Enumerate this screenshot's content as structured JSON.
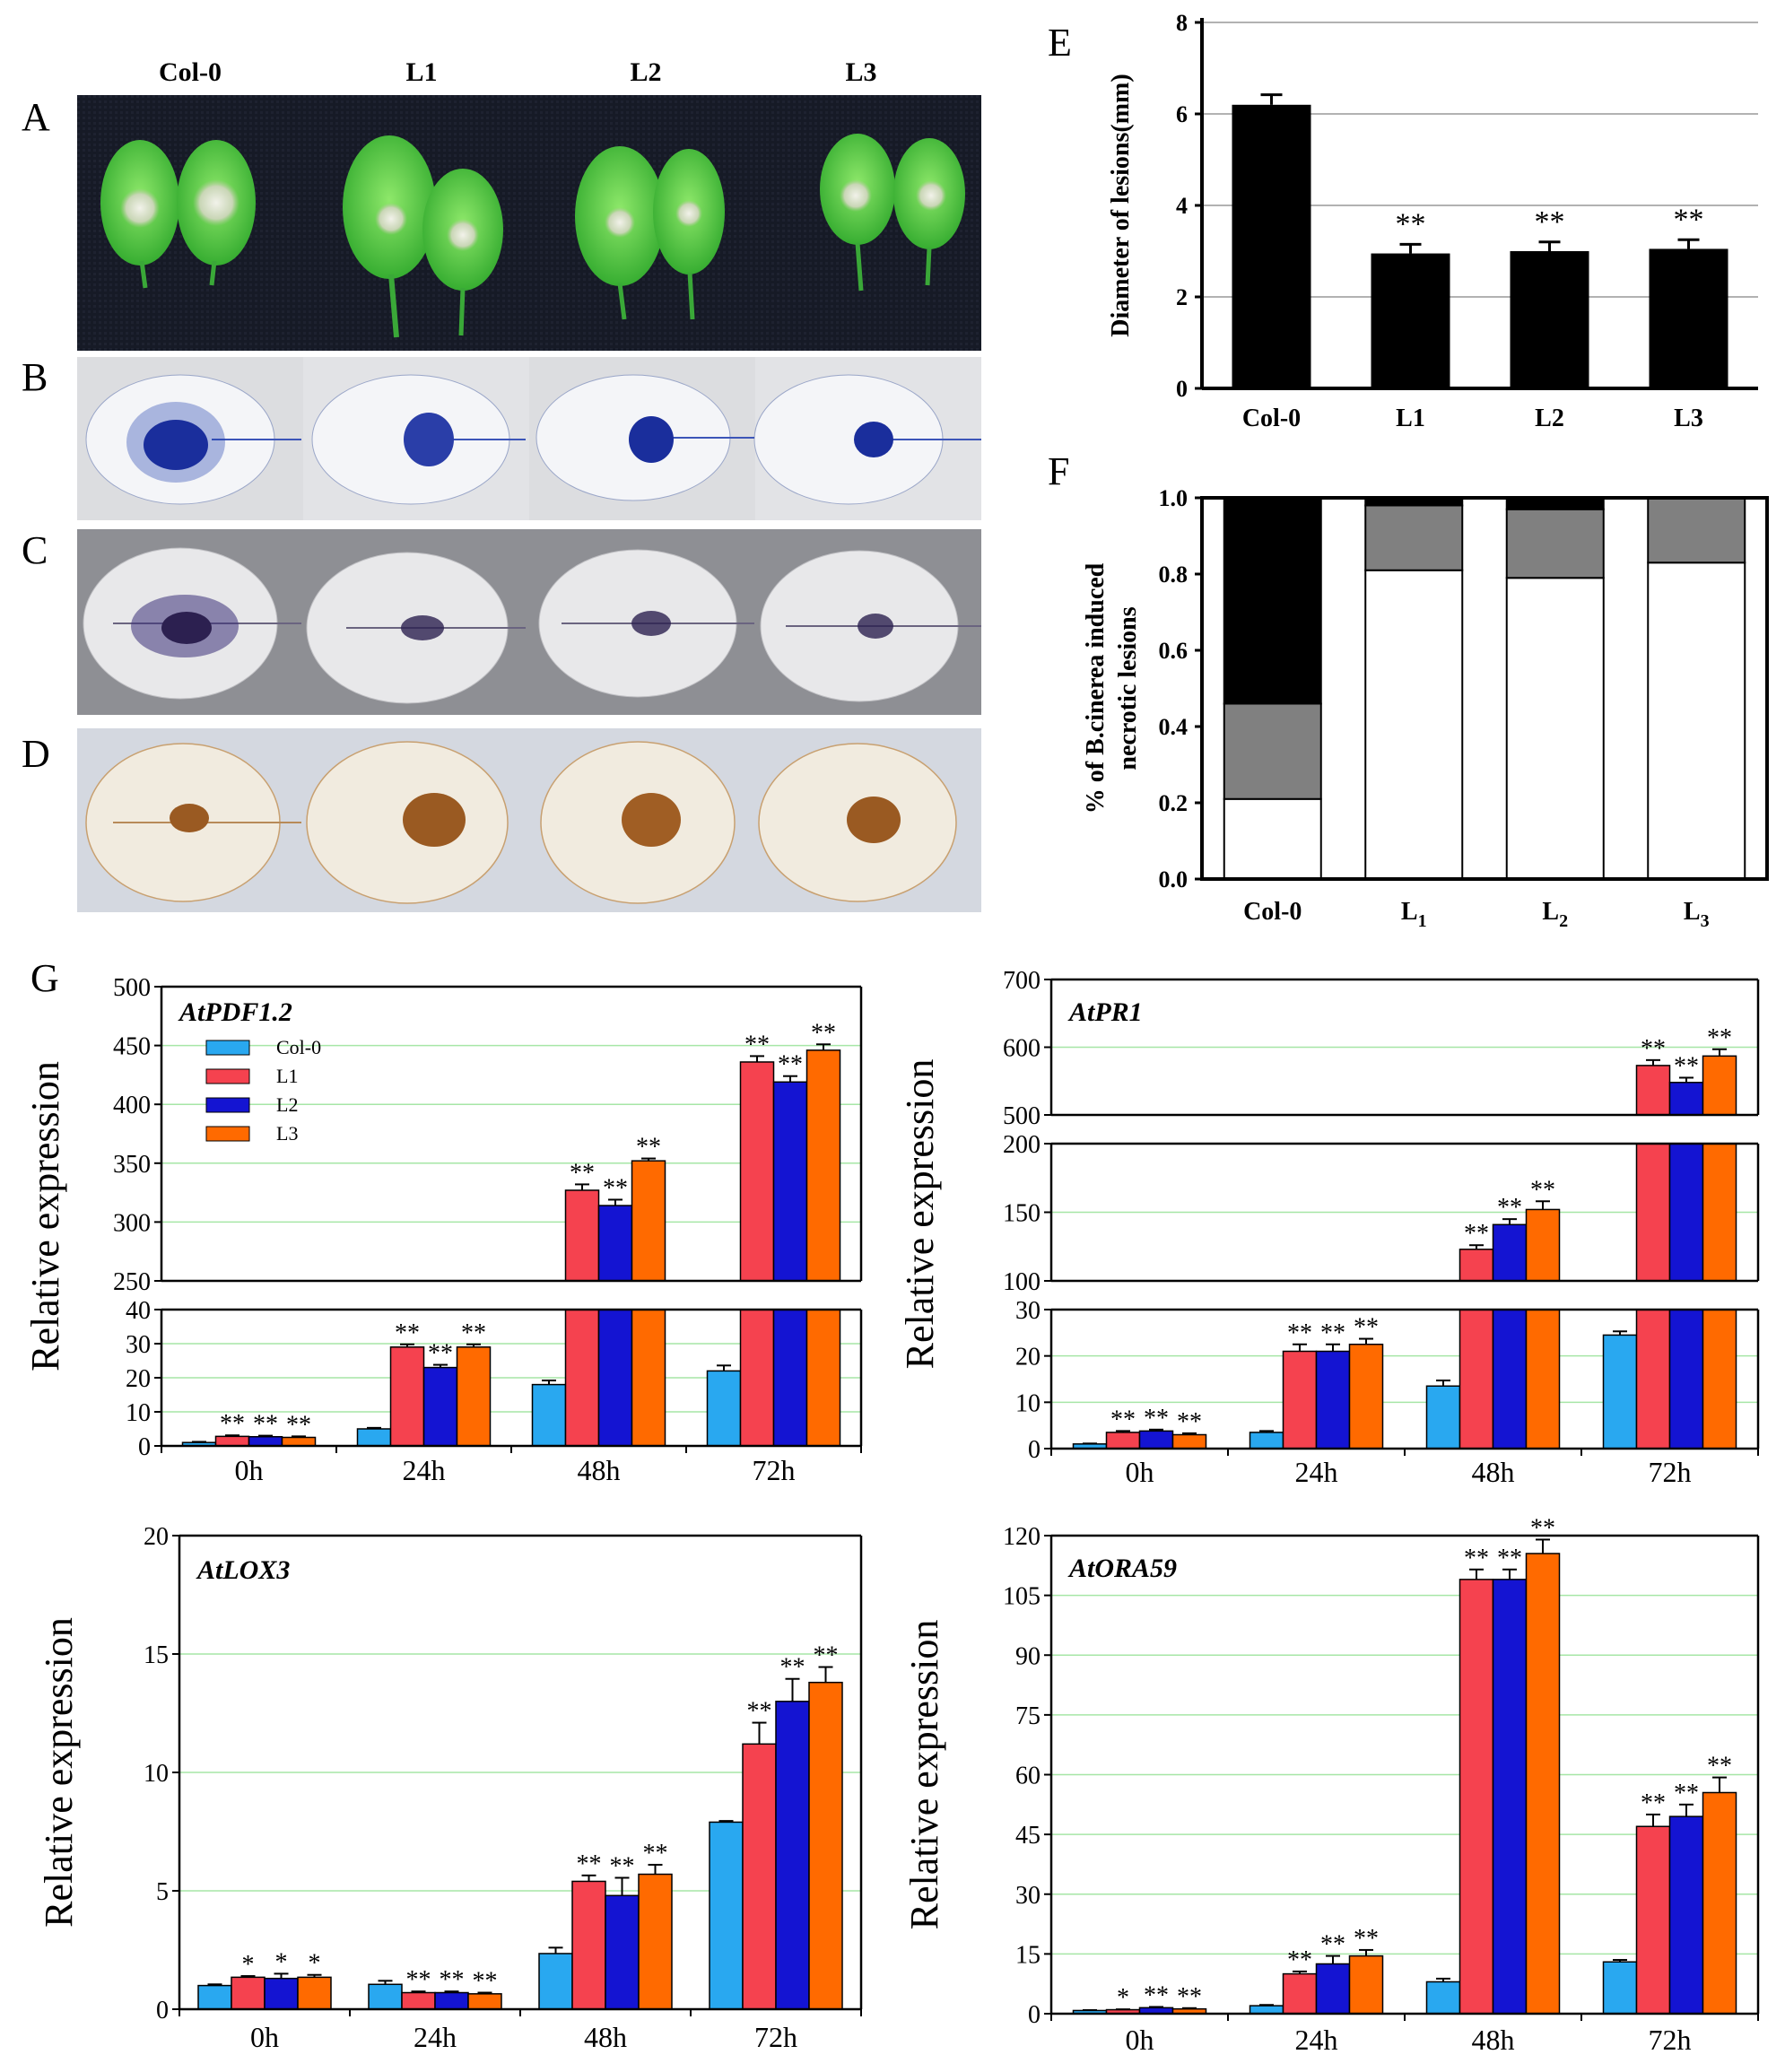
{
  "panels": {
    "A": "A",
    "B": "B",
    "C": "C",
    "D": "D",
    "E": "E",
    "F": "F",
    "G": "G"
  },
  "genotypes": [
    "Col-0",
    "L1",
    "L2",
    "L3"
  ],
  "colors": {
    "col0": "#29a8f0",
    "L1": "#f5424f",
    "L2": "#1414d2",
    "L3": "#ff6a00",
    "leaf_green": "#4fc43a",
    "trypan_blue": "#1d3fb0",
    "nbt": "#2c2050",
    "dab": "#9a5a22",
    "grid": "#a6e6a6",
    "f_black": "#000000",
    "f_gray": "#808080",
    "f_white": "#ffffff"
  },
  "chart_data": [
    {
      "id": "E",
      "type": "bar",
      "categories": [
        "Col-0",
        "L1",
        "L2",
        "L3"
      ],
      "values": [
        6.2,
        2.95,
        3.0,
        3.05
      ],
      "errors": [
        0.22,
        0.2,
        0.2,
        0.2
      ],
      "significance": [
        "",
        "**",
        "**",
        "**"
      ],
      "ylabel": "Diameter of lesions(mm)",
      "ylim": [
        0,
        8
      ],
      "yticks": [
        0,
        2,
        4,
        6,
        8
      ],
      "grid": true
    },
    {
      "id": "F",
      "type": "bar",
      "stacked": true,
      "categories": [
        "Col-0",
        "L1",
        "L2",
        "L3"
      ],
      "category_labels": [
        {
          "base": "Col-0",
          "sub": ""
        },
        {
          "base": "L",
          "sub": "1"
        },
        {
          "base": "L",
          "sub": "2"
        },
        {
          "base": "L",
          "sub": "3"
        }
      ],
      "series": [
        {
          "name": "white",
          "values": [
            0.21,
            0.81,
            0.79,
            0.83
          ]
        },
        {
          "name": "gray",
          "values": [
            0.25,
            0.17,
            0.18,
            0.17
          ]
        },
        {
          "name": "black",
          "values": [
            0.54,
            0.02,
            0.03,
            0.0
          ]
        }
      ],
      "ylabel": [
        "% of B.cinerea induced",
        "necrotic lesions"
      ],
      "ylim": [
        0,
        1.0
      ],
      "yticks": [
        "0.0",
        "0.2",
        "0.4",
        "0.6",
        "0.8",
        "1.0"
      ]
    },
    {
      "id": "G1",
      "type": "bar",
      "title": "AtPDF1.2",
      "categories": [
        "0h",
        "24h",
        "48h",
        "72h"
      ],
      "ylabel": "Relative expression",
      "broken_axis": {
        "lower": [
          0,
          40
        ],
        "upper": [
          250,
          500
        ]
      },
      "lower_ticks": [
        0,
        10,
        20,
        30,
        40
      ],
      "upper_ticks": [
        250,
        300,
        350,
        400,
        450,
        500
      ],
      "legend": [
        "Col-0",
        "L1",
        "L2",
        "L3"
      ],
      "series": [
        {
          "name": "Col-0",
          "values": [
            1,
            5,
            18,
            22
          ],
          "errors": [
            0.2,
            0.3,
            1.2,
            1.6
          ],
          "sig": [
            "",
            "",
            "",
            ""
          ]
        },
        {
          "name": "L1",
          "values": [
            2.8,
            29,
            327,
            436
          ],
          "errors": [
            0.3,
            0.8,
            5,
            5
          ],
          "sig": [
            "**",
            "**",
            "**",
            "**"
          ]
        },
        {
          "name": "L2",
          "values": [
            2.7,
            23,
            314,
            419
          ],
          "errors": [
            0.3,
            0.8,
            5,
            5
          ],
          "sig": [
            "**",
            "**",
            "**",
            "**"
          ]
        },
        {
          "name": "L3",
          "values": [
            2.5,
            29,
            352,
            446
          ],
          "errors": [
            0.3,
            0.8,
            2,
            5
          ],
          "sig": [
            "**",
            "**",
            "**",
            "**"
          ]
        }
      ]
    },
    {
      "id": "G2",
      "type": "bar",
      "title": "AtPR1",
      "categories": [
        "0h",
        "24h",
        "48h",
        "72h"
      ],
      "ylabel": "Relative expression",
      "broken_axis": {
        "lower": [
          0,
          30
        ],
        "middle": [
          100,
          200
        ],
        "upper": [
          500,
          700
        ]
      },
      "lower_ticks": [
        0,
        10,
        20,
        30
      ],
      "middle_ticks": [
        100,
        150,
        200
      ],
      "upper_ticks": [
        500,
        600,
        700
      ],
      "series": [
        {
          "name": "Col-0",
          "values": [
            1,
            3.5,
            13.5,
            24.5
          ],
          "errors": [
            0.1,
            0.3,
            1.2,
            0.8
          ],
          "sig": [
            "",
            "",
            "",
            ""
          ]
        },
        {
          "name": "L1",
          "values": [
            3.5,
            21,
            123,
            573
          ],
          "errors": [
            0.3,
            1.5,
            3,
            8
          ],
          "sig": [
            "**",
            "**",
            "**",
            "**"
          ]
        },
        {
          "name": "L2",
          "values": [
            3.8,
            21,
            141,
            548
          ],
          "errors": [
            0.3,
            1.5,
            4,
            7
          ],
          "sig": [
            "**",
            "**",
            "**",
            "**"
          ]
        },
        {
          "name": "L3",
          "values": [
            3.0,
            22.5,
            152,
            587
          ],
          "errors": [
            0.3,
            1.2,
            6,
            10
          ],
          "sig": [
            "**",
            "**",
            "**",
            "**"
          ]
        }
      ]
    },
    {
      "id": "G3",
      "type": "bar",
      "title": "AtLOX3",
      "categories": [
        "0h",
        "24h",
        "48h",
        "72h"
      ],
      "ylabel": "Relative expression",
      "ylim": [
        0,
        20
      ],
      "yticks": [
        0,
        5,
        10,
        15,
        20
      ],
      "series": [
        {
          "name": "Col-0",
          "values": [
            1.0,
            1.05,
            2.35,
            7.9
          ],
          "errors": [
            0.05,
            0.15,
            0.25,
            0.05
          ],
          "sig": [
            "",
            "",
            "",
            ""
          ]
        },
        {
          "name": "L1",
          "values": [
            1.35,
            0.7,
            5.4,
            11.2
          ],
          "errors": [
            0.05,
            0.05,
            0.25,
            0.9
          ],
          "sig": [
            "*",
            "**",
            "**",
            "**"
          ]
        },
        {
          "name": "L2",
          "values": [
            1.3,
            0.7,
            4.8,
            13.0
          ],
          "errors": [
            0.2,
            0.05,
            0.75,
            0.95
          ],
          "sig": [
            "*",
            "**",
            "**",
            "**"
          ]
        },
        {
          "name": "L3",
          "values": [
            1.35,
            0.65,
            5.7,
            13.8
          ],
          "errors": [
            0.1,
            0.05,
            0.4,
            0.65
          ],
          "sig": [
            "*",
            "**",
            "**",
            "**"
          ]
        }
      ]
    },
    {
      "id": "G4",
      "type": "bar",
      "title": "AtORA59",
      "categories": [
        "0h",
        "24h",
        "48h",
        "72h"
      ],
      "ylabel": "Relative expression",
      "ylim": [
        0,
        120
      ],
      "yticks": [
        0,
        15,
        30,
        45,
        60,
        75,
        90,
        105,
        120
      ],
      "series": [
        {
          "name": "Col-0",
          "values": [
            0.8,
            2.0,
            8.0,
            13.0
          ],
          "errors": [
            0.1,
            0.2,
            0.8,
            0.5
          ],
          "sig": [
            "",
            "",
            "",
            ""
          ]
        },
        {
          "name": "L1",
          "values": [
            1.0,
            10.0,
            109,
            47
          ],
          "errors": [
            0.1,
            0.6,
            2.5,
            3.0
          ],
          "sig": [
            "*",
            "**",
            "**",
            "**"
          ]
        },
        {
          "name": "L2",
          "values": [
            1.5,
            12.5,
            109,
            49.5
          ],
          "errors": [
            0.2,
            2.0,
            2.5,
            3.0
          ],
          "sig": [
            "**",
            "**",
            "**",
            "**"
          ]
        },
        {
          "name": "L3",
          "values": [
            1.2,
            14.5,
            115.5,
            55.5
          ],
          "errors": [
            0.2,
            1.5,
            3.5,
            3.8
          ],
          "sig": [
            "**",
            "**",
            "**",
            "**"
          ]
        }
      ]
    }
  ]
}
